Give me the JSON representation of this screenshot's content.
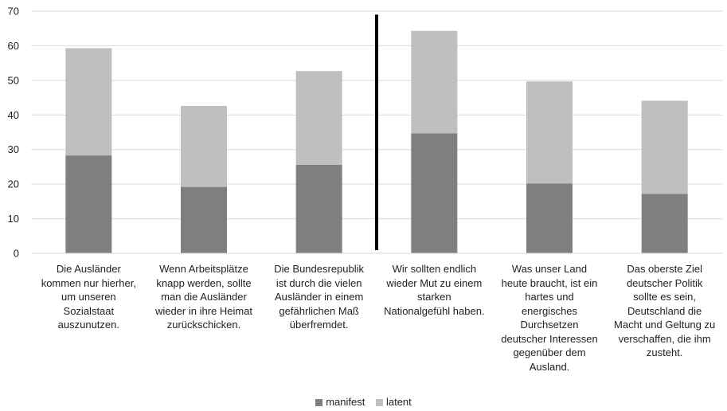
{
  "chart_data": {
    "type": "bar",
    "stacked": true,
    "categories": [
      "Die Ausländer kommen nur hierher, um unseren Sozialstaat auszunutzen.",
      "Wenn Arbeitsplätze knapp werden, sollte man die Ausländer wieder in ihre Heimat zurückschicken.",
      "Die Bundesrepublik ist durch die vielen Ausländer in einem gefährlichen Maß überfremdet.",
      "Wir sollten endlich wieder Mut zu einem starken Nationalgefühl haben.",
      "Was unser Land heute braucht, ist ein hartes und energisches Durchsetzen deutscher Interessen gegenüber dem Ausland.",
      "Das oberste Ziel deutscher Politik sollte es sein, Deutschland die Macht und Geltung zu verschaffen, die ihm zusteht."
    ],
    "category_lines": [
      [
        "Die Ausländer",
        "kommen nur hierher,",
        "um unseren",
        "Sozialstaat",
        "auszunutzen."
      ],
      [
        "Wenn Arbeitsplätze",
        "knapp werden, sollte",
        "man die Ausländer",
        "wieder in ihre Heimat",
        "zurückschicken."
      ],
      [
        "Die Bundesrepublik",
        "ist durch die vielen",
        "Ausländer in einem",
        "gefährlichen Maß",
        "überfremdet."
      ],
      [
        "Wir sollten endlich",
        "wieder Mut zu einem",
        "starken",
        "Nationalgefühl haben."
      ],
      [
        "Was unser Land",
        "heute braucht, ist ein",
        "hartes und",
        "energisches",
        "Durchsetzen",
        "deutscher Interessen",
        "gegenüber dem",
        "Ausland."
      ],
      [
        "Das oberste Ziel",
        "deutscher Politik",
        "sollte es sein,",
        "Deutschland die",
        "Macht und Geltung zu",
        "verschaffen, die ihm",
        "zusteht."
      ]
    ],
    "series": [
      {
        "name": "manifest",
        "values": [
          28.3,
          19.2,
          25.6,
          34.7,
          20.2,
          17.2
        ],
        "color": "#7f7f7f"
      },
      {
        "name": "latent",
        "values": [
          31.0,
          23.4,
          27.1,
          29.6,
          29.5,
          26.9
        ],
        "color": "#bfbfbf"
      }
    ],
    "ylim": [
      0,
      70
    ],
    "yticks": [
      "0",
      "10",
      "20",
      "30",
      "40",
      "50",
      "60",
      "70"
    ],
    "grid": true,
    "divider_after_category": 3,
    "legend_position": "bottom"
  }
}
